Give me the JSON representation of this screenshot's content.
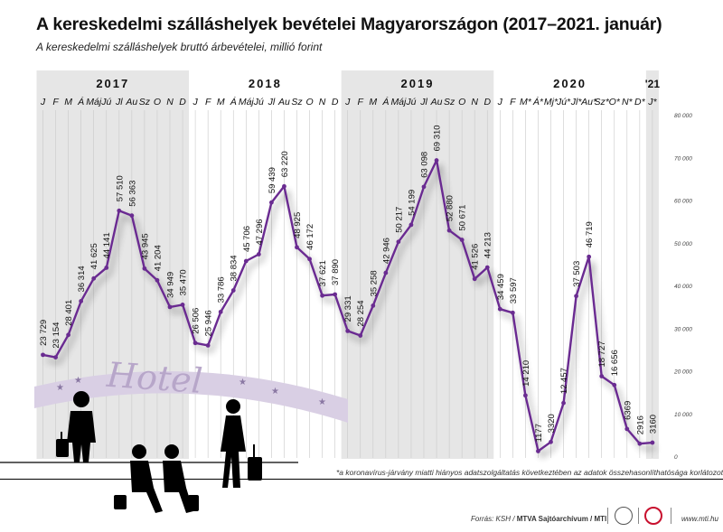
{
  "title": "A kereskedelmi szálláshelyek bevételei Magyarországon (2017–2021. január)",
  "subtitle": "A kereskedelmi szálláshelyek bruttó árbevételei, millió forint",
  "footnote": "*a koronavírus-járvány miatti hiányos adatszolgáltatás következtében az adatok összehasonlíthatósága korlátozott",
  "source": {
    "prefix": "Forrás: KSH / ",
    "archive": "MTVA Sajtóarchívum / MTI",
    "site": "www.mti.hu"
  },
  "decoration": {
    "hotel_sign": "Hotel",
    "hotel_icon": "hotel-sign-icon",
    "people_icon": "traveler-silhouettes-icon",
    "logos": [
      "mti-logo-icon",
      "mtva-logo-icon"
    ]
  },
  "colors": {
    "line": "#6a2c91",
    "band": "#e6e6e6",
    "sign": "#d9cfe4",
    "text": "#111111"
  },
  "chart_data": {
    "type": "line",
    "title": "A kereskedelmi szálláshelyek bevételei Magyarországon (2017–2021. január)",
    "ylabel": "",
    "ylim": [
      0,
      80000
    ],
    "yticks": [
      0,
      10000,
      20000,
      30000,
      40000,
      50000,
      60000,
      70000,
      80000
    ],
    "ytick_labels": [
      "0",
      "10 000",
      "20 000",
      "30 000",
      "40 000",
      "50 000",
      "60 000",
      "70 000",
      "80 000"
    ],
    "grid": "vertical",
    "years": [
      "2017",
      "2018",
      "2019",
      "2020",
      "'21"
    ],
    "x": [
      "J",
      "F",
      "M",
      "Á",
      "Máj",
      "Jú",
      "Jl",
      "Au",
      "Sz",
      "O",
      "N",
      "D",
      "J",
      "F",
      "M",
      "Á",
      "Máj",
      "Jú",
      "Jl",
      "Au",
      "Sz",
      "O",
      "N",
      "D",
      "J",
      "F",
      "M",
      "Á",
      "Máj",
      "Jú",
      "Jl",
      "Au",
      "Sz",
      "O",
      "N",
      "D",
      "J",
      "F",
      "M*",
      "Á*",
      "Mj*",
      "Jú*",
      "Jl*",
      "Au*",
      "Sz*",
      "O*",
      "N*",
      "D*",
      "J*"
    ],
    "series": [
      {
        "values": [
          23729,
          23154,
          28401,
          36314,
          41625,
          44141,
          57510,
          56363,
          43945,
          41204,
          34949,
          35470,
          26506,
          25946,
          33786,
          38834,
          45706,
          47296,
          59439,
          63220,
          48925,
          46172,
          37621,
          37890,
          29331,
          28254,
          35258,
          42946,
          50217,
          54199,
          63098,
          69310,
          52880,
          50671,
          41526,
          44213,
          34459,
          33597,
          14210,
          1177,
          3320,
          12457,
          37503,
          46719,
          18727,
          16656,
          6369,
          2916,
          3160
        ],
        "labels": [
          "23 729",
          "23 154",
          "28 401",
          "36 314",
          "41 625",
          "44 141",
          "57 510",
          "56 363",
          "43 945",
          "41 204",
          "34 949",
          "35 470",
          "26 506",
          "25 946",
          "33 786",
          "38 834",
          "45 706",
          "47 296",
          "59 439",
          "63 220",
          "48 925",
          "46 172",
          "37 621",
          "37 890",
          "29 331",
          "28 254",
          "35 258",
          "42 946",
          "50 217",
          "54 199",
          "63 098",
          "69 310",
          "52 880",
          "50 671",
          "41 526",
          "44 213",
          "34 459",
          "33 597",
          "14 210",
          "1177",
          "3320",
          "12 457",
          "37 503",
          "46 719",
          "18 727",
          "16 656",
          "6369",
          "2916",
          "3160"
        ]
      }
    ]
  }
}
